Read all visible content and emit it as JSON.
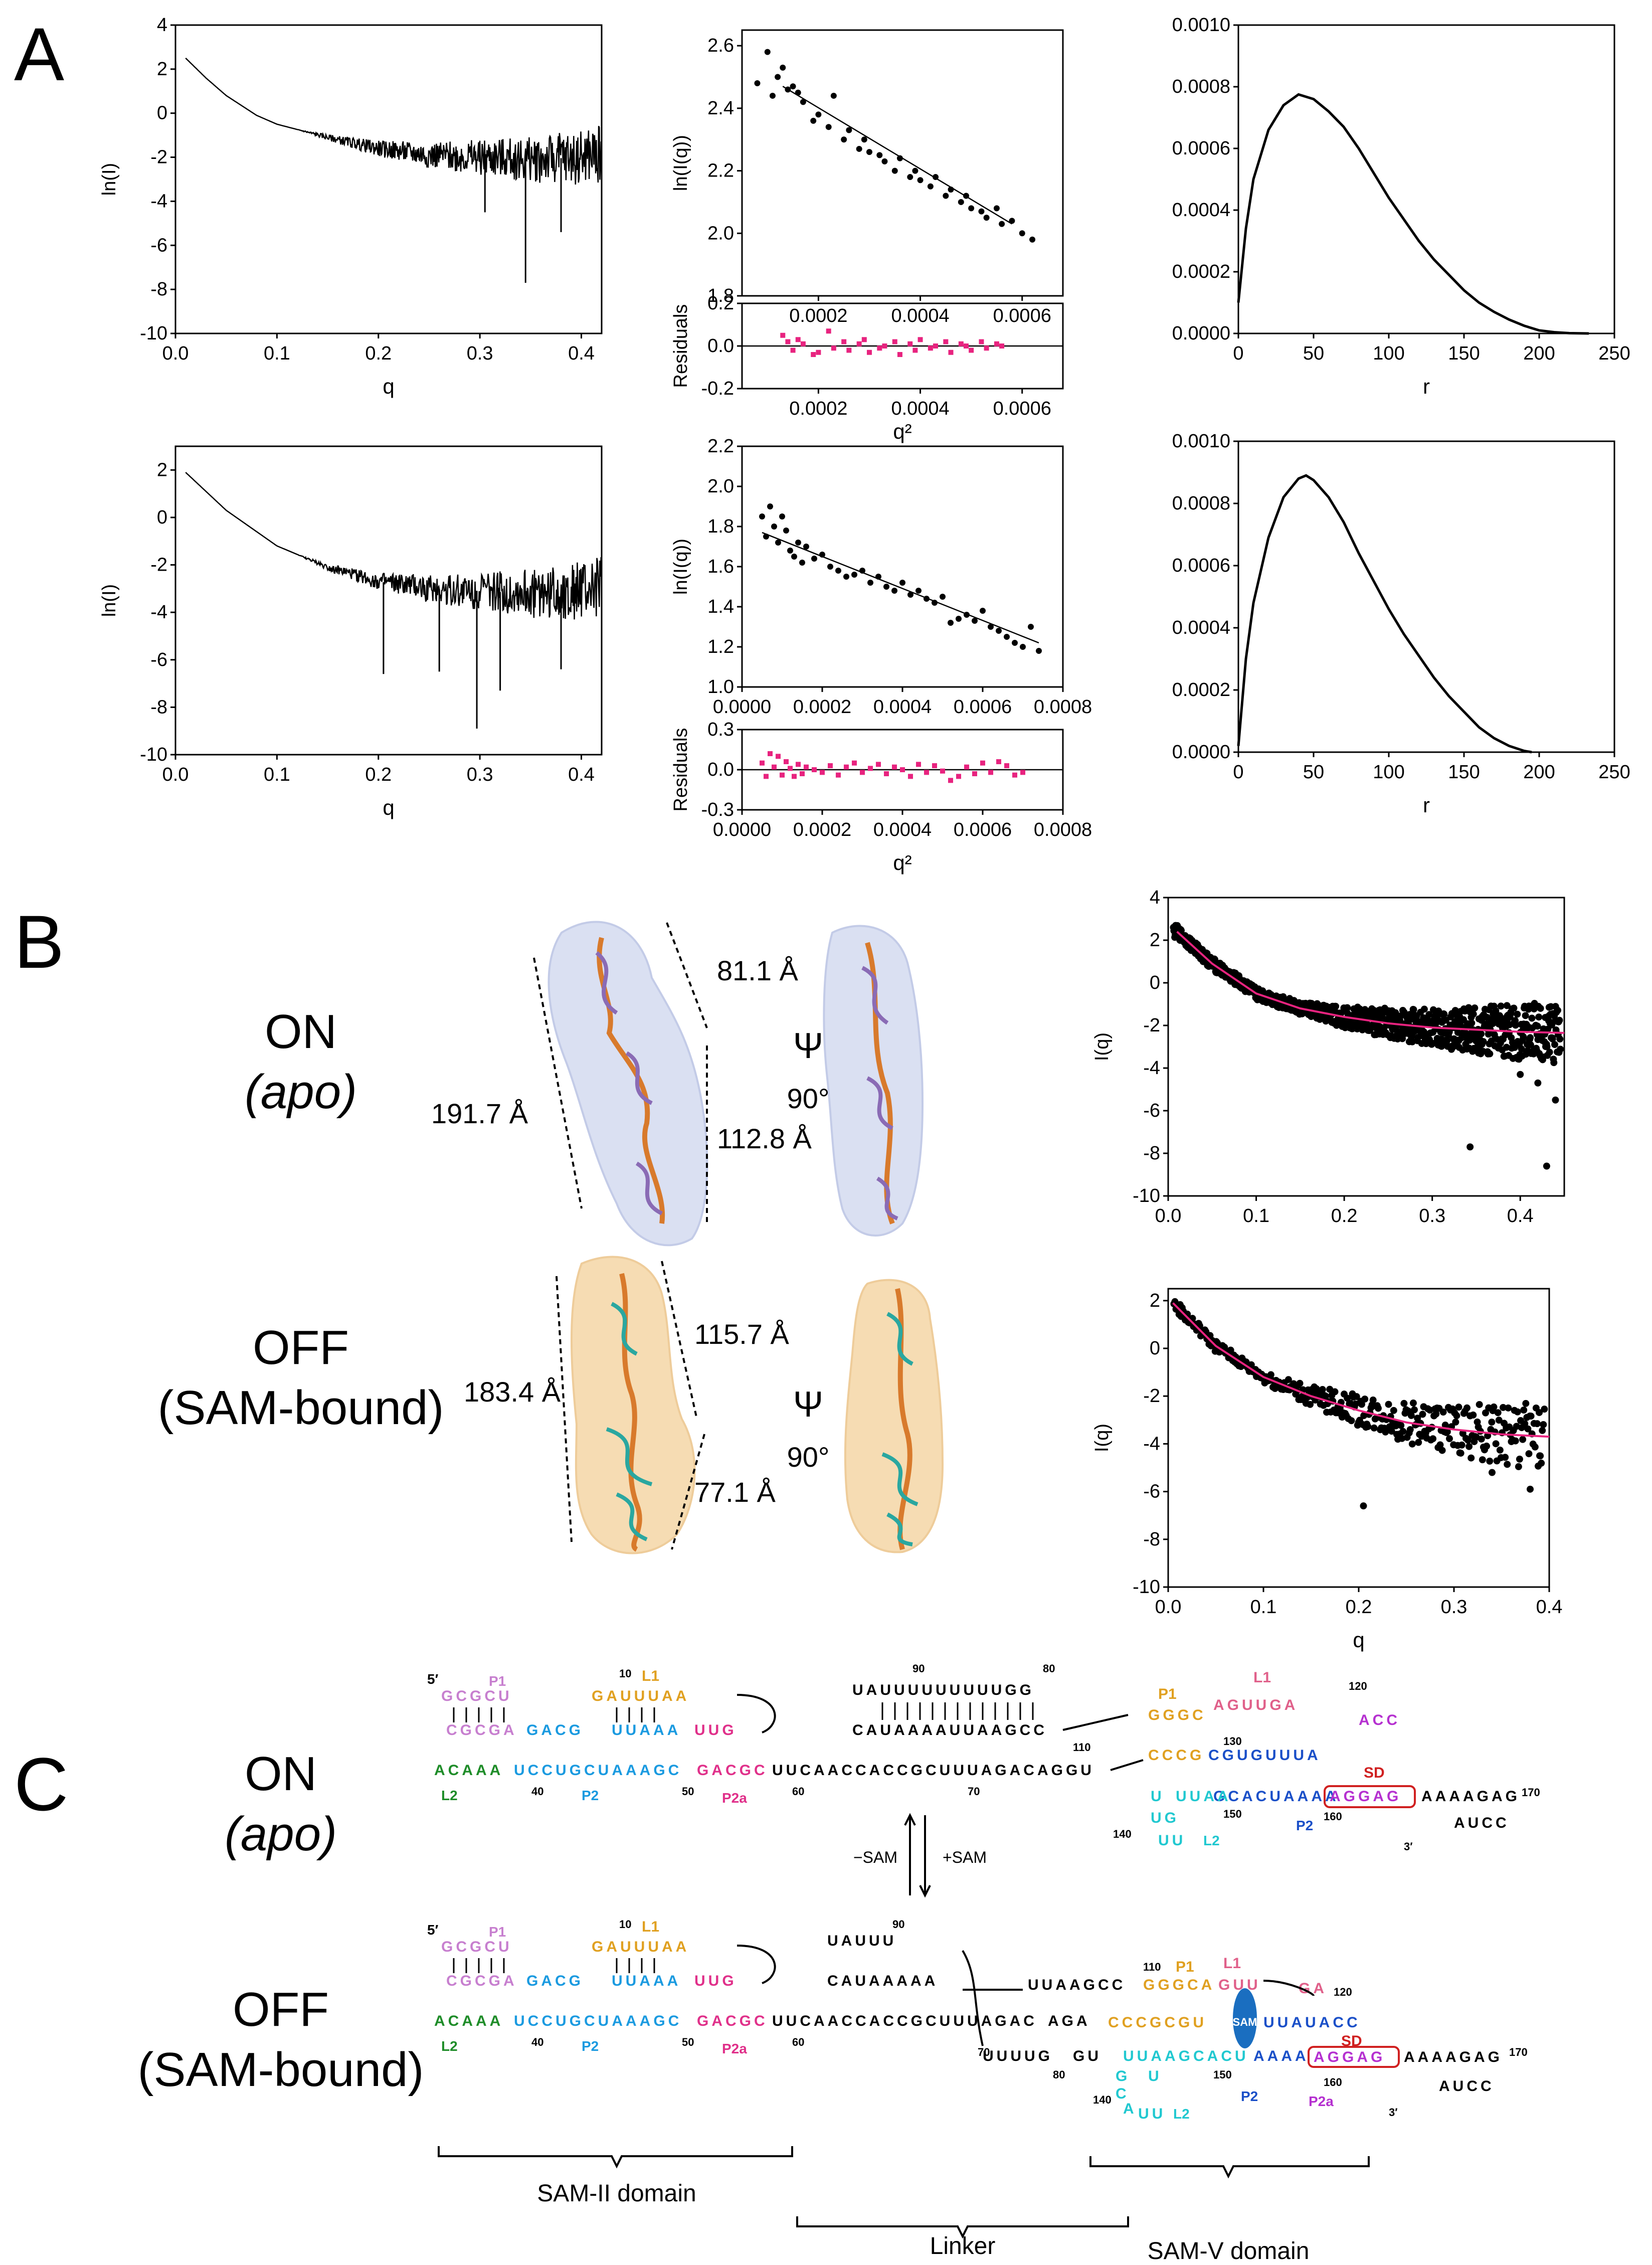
{
  "panels": {
    "A": "A",
    "B": "B",
    "C": "C"
  },
  "chart_data": [
    {
      "id": "A1",
      "type": "line",
      "xlabel": "q",
      "ylabel": "ln(I)",
      "xlim": [
        0,
        0.42
      ],
      "ylim": [
        -10,
        4
      ],
      "xticks": [
        "0.0",
        "0.1",
        "0.2",
        "0.3",
        "0.4"
      ],
      "yticks": [
        "4",
        "2",
        "0",
        "-2",
        "-4",
        "-6",
        "-8",
        "-10"
      ],
      "x": [
        0.01,
        0.03,
        0.05,
        0.08,
        0.1,
        0.15,
        0.2,
        0.25,
        0.3,
        0.35,
        0.4,
        0.42
      ],
      "y": [
        2.5,
        1.6,
        0.8,
        -0.1,
        -0.5,
        -1.1,
        -1.6,
        -1.9,
        -2.0,
        -2.1,
        -2.0,
        -1.8
      ],
      "spikes": [
        {
          "x": 0.345,
          "y": -7.7
        },
        {
          "x": 0.305,
          "y": -4.5
        },
        {
          "x": 0.38,
          "y": -5.4
        }
      ]
    },
    {
      "id": "A2",
      "type": "scatter",
      "ylabel": "ln(I(q))",
      "xlim": [
        5e-05,
        0.00068
      ],
      "ylim": [
        1.8,
        2.65
      ],
      "xticks": [
        "0.0002",
        "0.0004",
        "0.0006"
      ],
      "yticks": [
        "2.6",
        "2.4",
        "2.2",
        "2.0",
        "1.8"
      ],
      "x": [
        8e-05,
        0.0001,
        0.00011,
        0.00012,
        0.00013,
        0.00014,
        0.00015,
        0.00016,
        0.00017,
        0.00019,
        0.0002,
        0.00022,
        0.00023,
        0.00025,
        0.00026,
        0.00028,
        0.00029,
        0.0003,
        0.00032,
        0.00033,
        0.00035,
        0.00036,
        0.00038,
        0.00039,
        0.0004,
        0.00042,
        0.00043,
        0.00045,
        0.00046,
        0.00048,
        0.00049,
        0.0005,
        0.00052,
        0.00053,
        0.00055,
        0.00056,
        0.00058,
        0.0006,
        0.00062
      ],
      "y": [
        2.48,
        2.58,
        2.44,
        2.5,
        2.53,
        2.46,
        2.47,
        2.45,
        2.42,
        2.36,
        2.38,
        2.34,
        2.44,
        2.3,
        2.33,
        2.27,
        2.3,
        2.26,
        2.25,
        2.23,
        2.2,
        2.24,
        2.18,
        2.2,
        2.17,
        2.15,
        2.18,
        2.12,
        2.14,
        2.1,
        2.12,
        2.08,
        2.07,
        2.05,
        2.08,
        2.03,
        2.04,
        2.0,
        1.98
      ],
      "fit": {
        "x": [
          0.00013,
          0.00058
        ],
        "y": [
          2.47,
          2.03
        ]
      }
    },
    {
      "id": "A3",
      "type": "scatter",
      "xlabel": "q²",
      "ylabel": "Residuals",
      "xlim": [
        5e-05,
        0.00068
      ],
      "ylim": [
        -0.2,
        0.2
      ],
      "xticks": [
        "0.0002",
        "0.0004",
        "0.0006"
      ],
      "yticks": [
        "0.2",
        "0.0",
        "-0.2"
      ],
      "x": [
        0.00013,
        0.00014,
        0.00015,
        0.00016,
        0.00017,
        0.00019,
        0.0002,
        0.00022,
        0.00023,
        0.00025,
        0.00026,
        0.00028,
        0.00029,
        0.0003,
        0.00032,
        0.00033,
        0.00035,
        0.00036,
        0.00038,
        0.00039,
        0.0004,
        0.00042,
        0.00043,
        0.00045,
        0.00046,
        0.00048,
        0.00049,
        0.0005,
        0.00052,
        0.00053,
        0.00055,
        0.00056
      ],
      "y": [
        0.05,
        0.02,
        -0.02,
        0.03,
        0.01,
        -0.04,
        -0.03,
        0.07,
        -0.01,
        0.02,
        -0.02,
        0.01,
        0.03,
        -0.03,
        -0.01,
        0.0,
        0.02,
        -0.04,
        0.01,
        -0.02,
        0.03,
        -0.01,
        0.0,
        0.02,
        -0.03,
        0.01,
        0.0,
        -0.02,
        0.02,
        -0.01,
        0.01,
        0.0
      ]
    },
    {
      "id": "A4",
      "type": "line",
      "xlabel": "r",
      "xlim": [
        0,
        250
      ],
      "ylim": [
        0,
        0.001
      ],
      "xticks": [
        "0",
        "50",
        "100",
        "150",
        "200",
        "250"
      ],
      "yticks": [
        "0.0010",
        "0.0008",
        "0.0006",
        "0.0004",
        "0.0002",
        "0.0000"
      ],
      "x": [
        0,
        5,
        10,
        20,
        30,
        40,
        50,
        60,
        70,
        80,
        90,
        100,
        110,
        120,
        130,
        140,
        150,
        160,
        170,
        180,
        190,
        200,
        210,
        220,
        233
      ],
      "y": [
        0.0001,
        0.00034,
        0.0005,
        0.00066,
        0.00074,
        0.000775,
        0.00076,
        0.00072,
        0.00067,
        0.0006,
        0.00052,
        0.00044,
        0.00037,
        0.0003,
        0.00024,
        0.00019,
        0.00014,
        0.0001,
        7e-05,
        4.5e-05,
        2.5e-05,
        1e-05,
        4e-06,
        1e-06,
        0
      ]
    },
    {
      "id": "A5",
      "type": "line",
      "xlabel": "q",
      "ylabel": "ln(I)",
      "xlim": [
        0,
        0.42
      ],
      "ylim": [
        -10,
        3
      ],
      "xticks": [
        "0.0",
        "0.1",
        "0.2",
        "0.3",
        "0.4"
      ],
      "yticks": [
        "2",
        "0",
        "-2",
        "-4",
        "-6",
        "-8",
        "-10"
      ],
      "x": [
        0.01,
        0.03,
        0.05,
        0.08,
        0.1,
        0.15,
        0.2,
        0.25,
        0.3,
        0.35,
        0.4,
        0.42
      ],
      "y": [
        1.9,
        1.1,
        0.3,
        -0.6,
        -1.2,
        -2.1,
        -2.7,
        -3.0,
        -3.1,
        -3.2,
        -3.1,
        -3.0
      ],
      "spikes": [
        {
          "x": 0.297,
          "y": -8.9
        },
        {
          "x": 0.205,
          "y": -6.6
        },
        {
          "x": 0.32,
          "y": -7.3
        },
        {
          "x": 0.26,
          "y": -6.5
        },
        {
          "x": 0.38,
          "y": -6.4
        }
      ]
    },
    {
      "id": "A6",
      "type": "scatter",
      "ylabel": "ln(I(q))",
      "xlim": [
        0,
        0.0008
      ],
      "ylim": [
        1.0,
        2.2
      ],
      "xticks": [
        "0.0000",
        "0.0002",
        "0.0004",
        "0.0006",
        "0.0008"
      ],
      "yticks": [
        "2.2",
        "2.0",
        "1.8",
        "1.6",
        "1.4",
        "1.2",
        "1.0"
      ],
      "x": [
        5e-05,
        6e-05,
        7e-05,
        8e-05,
        9e-05,
        0.0001,
        0.00011,
        0.00012,
        0.00013,
        0.00014,
        0.00015,
        0.00016,
        0.00018,
        0.0002,
        0.00022,
        0.00024,
        0.00026,
        0.00028,
        0.0003,
        0.00032,
        0.00034,
        0.00036,
        0.00038,
        0.0004,
        0.00042,
        0.00044,
        0.00046,
        0.00048,
        0.0005,
        0.00052,
        0.00054,
        0.00056,
        0.00058,
        0.0006,
        0.00062,
        0.00064,
        0.00066,
        0.00068,
        0.0007,
        0.00072,
        0.00074
      ],
      "y": [
        1.85,
        1.75,
        1.9,
        1.8,
        1.72,
        1.85,
        1.78,
        1.68,
        1.65,
        1.72,
        1.62,
        1.7,
        1.64,
        1.66,
        1.6,
        1.58,
        1.55,
        1.56,
        1.58,
        1.52,
        1.55,
        1.5,
        1.48,
        1.52,
        1.46,
        1.48,
        1.44,
        1.42,
        1.45,
        1.32,
        1.34,
        1.36,
        1.33,
        1.38,
        1.3,
        1.28,
        1.25,
        1.22,
        1.2,
        1.3,
        1.18
      ],
      "fit": {
        "x": [
          5e-05,
          0.00074
        ],
        "y": [
          1.77,
          1.22
        ]
      }
    },
    {
      "id": "A7",
      "type": "scatter",
      "xlabel": "q²",
      "ylabel": "Residuals",
      "xlim": [
        0,
        0.0008
      ],
      "ylim": [
        -0.3,
        0.3
      ],
      "xticks": [
        "0.0000",
        "0.0002",
        "0.0004",
        "0.0006",
        "0.0008"
      ],
      "yticks": [
        "0.3",
        "0.0",
        "-0.3"
      ],
      "x": [
        5e-05,
        6e-05,
        7e-05,
        8e-05,
        9e-05,
        0.0001,
        0.00011,
        0.00012,
        0.00013,
        0.00014,
        0.00015,
        0.00016,
        0.00018,
        0.0002,
        0.00022,
        0.00024,
        0.00026,
        0.00028,
        0.0003,
        0.00032,
        0.00034,
        0.00036,
        0.00038,
        0.0004,
        0.00042,
        0.00044,
        0.00046,
        0.00048,
        0.0005,
        0.00052,
        0.00054,
        0.00056,
        0.00058,
        0.0006,
        0.00062,
        0.00064,
        0.00066,
        0.00068,
        0.0007
      ],
      "y": [
        0.05,
        -0.05,
        0.12,
        0.02,
        0.1,
        -0.04,
        0.06,
        0.01,
        -0.05,
        0.04,
        -0.03,
        0.02,
        0.0,
        -0.02,
        0.03,
        -0.04,
        0.02,
        0.05,
        -0.02,
        0.01,
        0.04,
        -0.03,
        0.02,
        0.0,
        -0.05,
        0.04,
        -0.02,
        0.03,
        -0.01,
        -0.08,
        -0.05,
        0.02,
        -0.03,
        0.05,
        -0.02,
        0.06,
        0.03,
        -0.04,
        -0.02
      ]
    },
    {
      "id": "A8",
      "type": "line",
      "xlabel": "r",
      "xlim": [
        0,
        250
      ],
      "ylim": [
        0,
        0.001
      ],
      "xticks": [
        "0",
        "50",
        "100",
        "150",
        "200",
        "250"
      ],
      "yticks": [
        "0.0010",
        "0.0008",
        "0.0006",
        "0.0004",
        "0.0002",
        "0.0000"
      ],
      "x": [
        0,
        5,
        10,
        20,
        30,
        40,
        45,
        50,
        60,
        70,
        80,
        90,
        100,
        110,
        120,
        130,
        140,
        150,
        160,
        170,
        180,
        190,
        195
      ],
      "y": [
        2e-05,
        0.0003,
        0.00048,
        0.00069,
        0.00082,
        0.00088,
        0.00089,
        0.000875,
        0.00082,
        0.00074,
        0.00064,
        0.00055,
        0.00046,
        0.00038,
        0.00031,
        0.00024,
        0.00018,
        0.00013,
        8e-05,
        4.5e-05,
        2e-05,
        4e-06,
        0
      ]
    },
    {
      "id": "B1",
      "type": "scatter",
      "ylabel": "I(q)",
      "xlim": [
        0,
        0.45
      ],
      "ylim": [
        -10,
        4
      ],
      "xticks": [
        "0.0",
        "0.1",
        "0.2",
        "0.3",
        "0.4"
      ],
      "yticks": [
        "4",
        "2",
        "0",
        "-2",
        "-4",
        "-6",
        "-8",
        "-10"
      ],
      "fit": {
        "x": [
          0.01,
          0.05,
          0.1,
          0.15,
          0.2,
          0.25,
          0.3,
          0.35,
          0.4,
          0.45
        ],
        "y": [
          2.4,
          0.9,
          -0.5,
          -1.2,
          -1.6,
          -1.9,
          -2.1,
          -2.2,
          -2.3,
          -2.35
        ]
      },
      "outliers": [
        {
          "x": 0.343,
          "y": -7.7
        },
        {
          "x": 0.43,
          "y": -8.6
        },
        {
          "x": 0.44,
          "y": -5.5
        },
        {
          "x": 0.42,
          "y": -4.7
        },
        {
          "x": 0.4,
          "y": -4.3
        }
      ]
    },
    {
      "id": "B2",
      "type": "scatter",
      "xlabel": "q",
      "ylabel": "I(q)",
      "xlim": [
        0,
        0.4
      ],
      "ylim": [
        -10,
        2.5
      ],
      "xticks": [
        "0.0",
        "0.1",
        "0.2",
        "0.3",
        "0.4"
      ],
      "yticks": [
        "2",
        "0",
        "-2",
        "-4",
        "-6",
        "-8",
        "-10"
      ],
      "fit": {
        "x": [
          0.005,
          0.05,
          0.1,
          0.15,
          0.2,
          0.25,
          0.3,
          0.35,
          0.4
        ],
        "y": [
          1.9,
          0.1,
          -1.2,
          -2.0,
          -2.6,
          -3.1,
          -3.4,
          -3.6,
          -3.7
        ]
      },
      "outliers": [
        {
          "x": 0.205,
          "y": -6.6
        },
        {
          "x": 0.38,
          "y": -5.9
        },
        {
          "x": 0.34,
          "y": -5.2
        },
        {
          "x": 0.39,
          "y": -4.5
        }
      ]
    }
  ],
  "models": {
    "on_title": "ON",
    "on_sub": "(apo)",
    "off_title": "OFF",
    "off_sub": "(SAM-bound)",
    "on_dims": [
      "81.1 Å",
      "191.7 Å",
      "112.8 Å"
    ],
    "off_dims": [
      "115.7 Å",
      "183.4 Å",
      "77.1 Å"
    ],
    "rotation": "90°",
    "rot_icon": "Ψ",
    "colors": {
      "apo_envelope": "#c9d2ec",
      "sam_envelope": "#f3cf93",
      "rna": "#d87a2c",
      "rna_alt": "#8a6bb5"
    }
  },
  "panelC": {
    "on_title": "ON",
    "on_sub": "(apo)",
    "off_title": "OFF",
    "off_sub": "(SAM-bound)",
    "minus_sam": "−SAM",
    "plus_sam": "+SAM",
    "domains": [
      "SAM-II domain",
      "Linker",
      "SAM-V domain"
    ],
    "sam": "SAM",
    "on_labels": {
      "p1": "P1",
      "l1": "L1",
      "l2": "L2",
      "p2": "P2",
      "p2a": "P2a",
      "p1b": "P1",
      "l1b": "L1",
      "sd": "SD",
      "p2b": "P2",
      "l2b": "L2",
      "n10": "10",
      "n40": "40",
      "n50": "50",
      "n60": "60",
      "n70": "70",
      "n80": "80",
      "n90": "90",
      "n110": "110",
      "n120": "120",
      "n130": "130",
      "n140": "140",
      "n150": "150",
      "n160": "160",
      "n170": "170",
      "five": "5′",
      "three": "3′"
    },
    "off_labels": {
      "p1": "P1",
      "l1": "L1",
      "l2": "L2",
      "p2": "P2",
      "p2a": "P2a",
      "p1b": "P1",
      "l1b": "L1",
      "sd": "SD",
      "p2b": "P2",
      "l2b": "L2",
      "p2ab": "P2a",
      "n10": "10",
      "n40": "40",
      "n50": "50",
      "n60": "60",
      "n70": "70",
      "n80": "80",
      "n90": "90",
      "n110": "110",
      "n120": "120",
      "n140": "140",
      "n150": "150",
      "n160": "160",
      "n170": "170",
      "five": "5′",
      "three": "3′"
    },
    "on_seq": {
      "top_p1": "GCGCU",
      "top_l1": "GAUUUAA",
      "p1_bot": "CGCGA",
      "gacg": "GACG",
      "uuaaa": "UUAAA",
      "uug": "UUG",
      "l2": "ACAAA",
      "p2": "UCCUGCUAAAGC",
      "p2a": "GACGC",
      "linker": "UUCAACCACCGCUUUAGACAGGU",
      "loop_top": "UAUUUUUUUUUGG",
      "loop_bot": "CAUAAAAUUAAGCC",
      "p1b": "GGGC",
      "l1b": "AGUUGA",
      "l1c": "ACC",
      "p1bot": "CCCG",
      "p2b": "CGUGUUUA",
      "p2c": "GCACUAAAA",
      "sd": "AGGAG",
      "tail": "AAAAGAG",
      "tail2": "AUCC",
      "l2b": "UUAA",
      "l2c": "UG",
      "l2d": "UU",
      "u": "U",
      "uu": "UU",
      "g": "G",
      "c": "C",
      "a": "A"
    },
    "off_seq": {
      "top_p1": "GCGCU",
      "top_l1": "GAUUUAA",
      "p1_bot": "CGCGA",
      "gacg": "GACG",
      "uuaaa": "UUAAA",
      "uug": "UUG",
      "l2": "ACAAA",
      "p2": "UCCUGCUAAAGC",
      "p2a": "GACGC",
      "linker": "UUCAACCACCGCUUUAGAC",
      "loop_top": "UAUUU",
      "loop_bot": "CAUAAAAA",
      "uuaag": "UUAAGCC",
      "p1b": "GGGCA",
      "gsu": "GUU",
      "ga": "GA",
      "p1bot": "CCCGCGU",
      "uuauacc": "UUAUACC",
      "p2c": "UUAAGCACU",
      "aaaa": "AAAA",
      "sd": "AGGAG",
      "tail": "AAAAGAG",
      "tail2": "AUCC",
      "aga": "AGA",
      "uuuug": "UUUUG",
      "gu": "GU",
      "u": "U",
      "uu": "UU",
      "g": "G",
      "c": "C",
      "a": "A"
    },
    "colors": {
      "p1": "#c77fcf",
      "l1": "#e0a020",
      "p2": "#1a9ae0",
      "p2a": "#e0308a",
      "l2": "#1e8c28",
      "p1b": "#e0a020",
      "l1b": "#e0608a",
      "l1c": "#b530d0",
      "p2b": "#1a4fc8",
      "l2b": "#20c8d0",
      "sd": "#d02020",
      "p2ab": "#b530d0",
      "sam": "#1a6ec0"
    }
  }
}
